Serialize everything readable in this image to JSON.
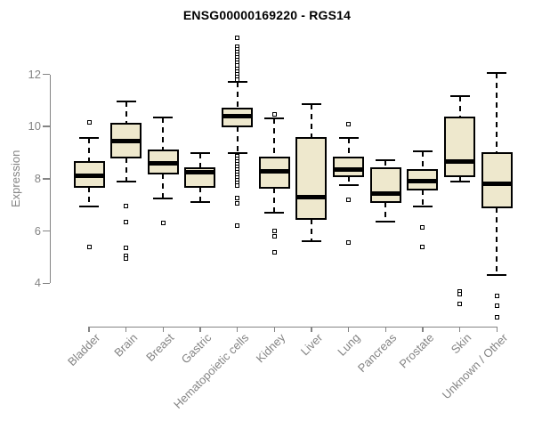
{
  "chart_data": {
    "type": "boxplot",
    "title": "ENSG00000169220 - RGS14",
    "ylabel": "Expression",
    "xlabel": "",
    "yticks": [
      4,
      6,
      8,
      10,
      12
    ],
    "ylim": [
      2.5,
      13.6
    ],
    "grid": false,
    "legend": "none",
    "categories": [
      "Bladder",
      "Brain",
      "Breast",
      "Gastric",
      "Hematopoietic cells",
      "Kidney",
      "Liver",
      "Lung",
      "Pancreas",
      "Prostate",
      "Skin",
      "Unknown / Other"
    ],
    "boxes": [
      {
        "category": "Bladder",
        "whisker_low": 6.95,
        "q1": 7.7,
        "median": 8.1,
        "q3": 8.65,
        "whisker_high": 9.55,
        "outliers": [
          10.15,
          5.4
        ]
      },
      {
        "category": "Brain",
        "whisker_low": 7.9,
        "q1": 8.8,
        "median": 9.45,
        "q3": 10.1,
        "whisker_high": 10.95,
        "outliers": [
          6.95,
          6.35,
          5.35,
          5.05,
          4.95
        ]
      },
      {
        "category": "Breast",
        "whisker_low": 7.25,
        "q1": 8.2,
        "median": 8.6,
        "q3": 9.1,
        "whisker_high": 10.35,
        "outliers": [
          6.3
        ]
      },
      {
        "category": "Gastric",
        "whisker_low": 7.1,
        "q1": 7.7,
        "median": 8.25,
        "q3": 8.4,
        "whisker_high": 9.0,
        "outliers": []
      },
      {
        "category": "Hematopoietic cells",
        "whisker_low": 9.0,
        "q1": 10.0,
        "median": 10.4,
        "q3": 10.7,
        "whisker_high": 11.7,
        "outliers": [
          13.4,
          13.05,
          12.95,
          12.85,
          12.75,
          12.65,
          12.55,
          12.45,
          12.35,
          12.2,
          12.1,
          12.0,
          11.9,
          11.8,
          8.85,
          8.75,
          8.65,
          8.55,
          8.45,
          8.35,
          8.25,
          8.15,
          8.05,
          7.95,
          7.85,
          7.75,
          7.25,
          7.05,
          6.2
        ]
      },
      {
        "category": "Kidney",
        "whisker_low": 6.7,
        "q1": 7.65,
        "median": 8.3,
        "q3": 8.8,
        "whisker_high": 10.3,
        "outliers": [
          10.45,
          6.0,
          5.8,
          5.2
        ]
      },
      {
        "category": "Liver",
        "whisker_low": 5.6,
        "q1": 6.45,
        "median": 7.3,
        "q3": 9.55,
        "whisker_high": 10.85,
        "outliers": []
      },
      {
        "category": "Lung",
        "whisker_low": 7.75,
        "q1": 8.1,
        "median": 8.35,
        "q3": 8.8,
        "whisker_high": 9.55,
        "outliers": [
          10.1,
          7.2,
          5.55
        ]
      },
      {
        "category": "Pancreas",
        "whisker_low": 6.35,
        "q1": 7.1,
        "median": 7.45,
        "q3": 8.4,
        "whisker_high": 8.7,
        "outliers": []
      },
      {
        "category": "Prostate",
        "whisker_low": 6.95,
        "q1": 7.6,
        "median": 7.9,
        "q3": 8.35,
        "whisker_high": 9.05,
        "outliers": [
          6.15,
          5.4
        ]
      },
      {
        "category": "Skin",
        "whisker_low": 7.9,
        "q1": 8.1,
        "median": 8.65,
        "q3": 10.35,
        "whisker_high": 11.15,
        "outliers": [
          3.7,
          3.6,
          3.2
        ]
      },
      {
        "category": "Unknown / Other",
        "whisker_low": 4.3,
        "q1": 6.9,
        "median": 7.8,
        "q3": 9.0,
        "whisker_high": 12.05,
        "outliers": [
          3.5,
          3.15,
          2.7
        ]
      }
    ],
    "colors": {
      "box_fill": "#EEE8CD",
      "box_border": "#000000",
      "median": "#000000",
      "whisker": "#000000",
      "axis": "#848484",
      "tick_label": "#848484",
      "title": "#000000",
      "background": "#FFFFFF"
    }
  }
}
